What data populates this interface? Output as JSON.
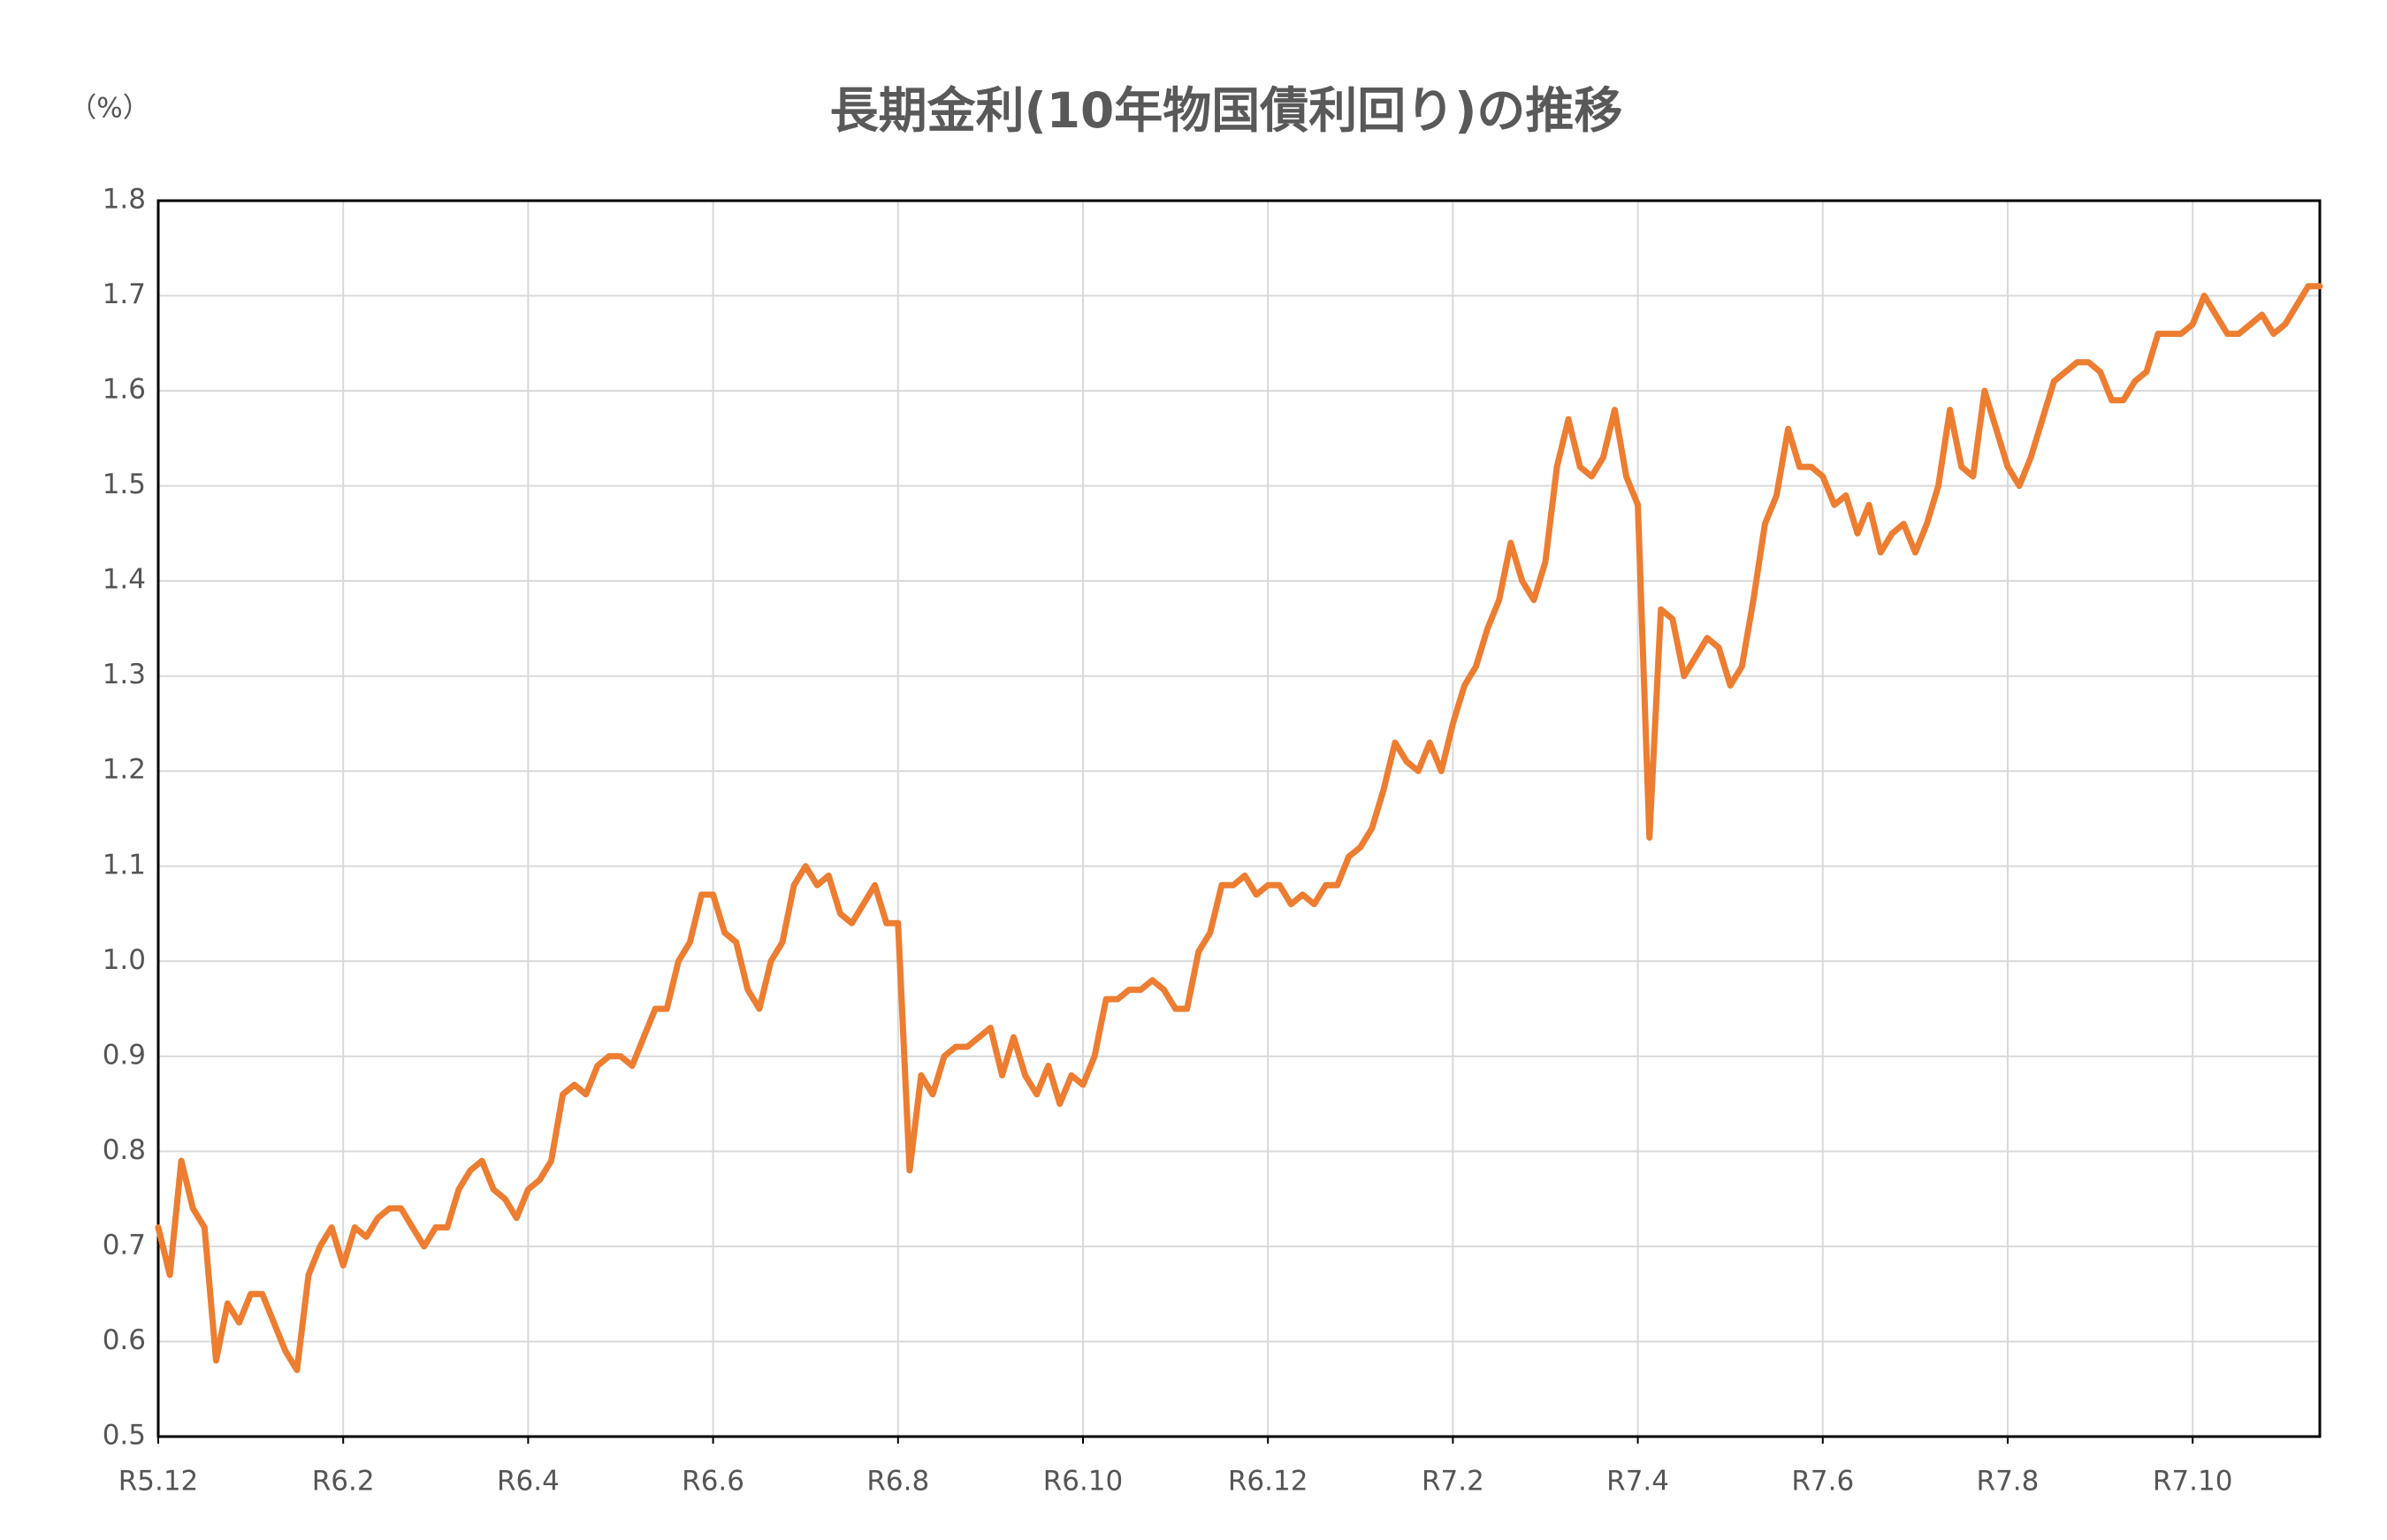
{
  "chart_data": {
    "type": "line",
    "title": "長期金利(10年物国債利回り)の推移",
    "y_label": "（%）",
    "categories": [
      "R5.12",
      null,
      null,
      null,
      null,
      null,
      null,
      null,
      null,
      null,
      null,
      null,
      null,
      null,
      null,
      null,
      "R6.2",
      null,
      null,
      null,
      null,
      null,
      null,
      null,
      null,
      null,
      null,
      null,
      null,
      null,
      null,
      null,
      "R6.4",
      null,
      null,
      null,
      null,
      null,
      null,
      null,
      null,
      null,
      null,
      null,
      null,
      null,
      null,
      null,
      "R6.6",
      null,
      null,
      null,
      null,
      null,
      null,
      null,
      null,
      null,
      null,
      null,
      null,
      null,
      null,
      null,
      "R6.8",
      null,
      null,
      null,
      null,
      null,
      null,
      null,
      null,
      null,
      null,
      null,
      null,
      null,
      null,
      null,
      "R6.10",
      null,
      null,
      null,
      null,
      null,
      null,
      null,
      null,
      null,
      null,
      null,
      null,
      null,
      null,
      null,
      "R6.12",
      null,
      null,
      null,
      null,
      null,
      null,
      null,
      null,
      null,
      null,
      null,
      null,
      null,
      null,
      null,
      "R7.2",
      null,
      null,
      null,
      null,
      null,
      null,
      null,
      null,
      null,
      null,
      null,
      null,
      null,
      null,
      null,
      "R7.4",
      null,
      null,
      null,
      null,
      null,
      null,
      null,
      null,
      null,
      null,
      null,
      null,
      null,
      null,
      null,
      "R7.6",
      null,
      null,
      null,
      null,
      null,
      null,
      null,
      null,
      null,
      null,
      null,
      null,
      null,
      null,
      null,
      "R7.8",
      null,
      null,
      null,
      null,
      null,
      null,
      null,
      null,
      null,
      null,
      null,
      null,
      null,
      null,
      null,
      "R7.10",
      null,
      null,
      null,
      null,
      null,
      null,
      null,
      null,
      null,
      null,
      null
    ],
    "series": [
      {
        "color": "#ED7D31",
        "values": [
          0.72,
          0.67,
          0.79,
          0.74,
          0.72,
          0.58,
          0.64,
          0.62,
          0.65,
          0.65,
          0.62,
          0.59,
          0.57,
          0.67,
          0.7,
          0.72,
          0.68,
          0.72,
          0.71,
          0.73,
          0.74,
          0.74,
          0.72,
          0.7,
          0.72,
          0.72,
          0.76,
          0.78,
          0.79,
          0.76,
          0.75,
          0.73,
          0.76,
          0.77,
          0.79,
          0.86,
          0.87,
          0.86,
          0.89,
          0.9,
          0.9,
          0.89,
          0.92,
          0.95,
          0.95,
          1.0,
          1.02,
          1.07,
          1.07,
          1.03,
          1.02,
          0.97,
          0.95,
          1.0,
          1.02,
          1.08,
          1.1,
          1.08,
          1.09,
          1.05,
          1.04,
          1.06,
          1.08,
          1.04,
          1.04,
          0.78,
          0.88,
          0.86,
          0.9,
          0.91,
          0.91,
          0.92,
          0.93,
          0.88,
          0.92,
          0.88,
          0.86,
          0.89,
          0.85,
          0.88,
          0.87,
          0.9,
          0.96,
          0.96,
          0.97,
          0.97,
          0.98,
          0.97,
          0.95,
          0.95,
          1.01,
          1.03,
          1.08,
          1.08,
          1.09,
          1.07,
          1.08,
          1.08,
          1.06,
          1.07,
          1.06,
          1.08,
          1.08,
          1.11,
          1.12,
          1.14,
          1.18,
          1.23,
          1.21,
          1.2,
          1.23,
          1.2,
          1.25,
          1.29,
          1.31,
          1.35,
          1.38,
          1.44,
          1.4,
          1.38,
          1.42,
          1.52,
          1.57,
          1.52,
          1.51,
          1.53,
          1.58,
          1.51,
          1.48,
          1.13,
          1.37,
          1.36,
          1.3,
          1.32,
          1.34,
          1.33,
          1.29,
          1.31,
          1.38,
          1.46,
          1.49,
          1.56,
          1.52,
          1.52,
          1.51,
          1.48,
          1.49,
          1.45,
          1.48,
          1.43,
          1.45,
          1.46,
          1.43,
          1.46,
          1.5,
          1.58,
          1.52,
          1.51,
          1.6,
          1.56,
          1.52,
          1.5,
          1.53,
          1.57,
          1.61,
          1.62,
          1.63,
          1.63,
          1.62,
          1.59,
          1.59,
          1.61,
          1.62,
          1.66,
          1.66,
          1.66,
          1.67,
          1.7,
          1.68,
          1.66,
          1.66,
          1.67,
          1.68,
          1.66,
          1.67,
          1.69,
          1.71,
          1.71
        ]
      }
    ],
    "ylim": [
      0.5,
      1.8
    ],
    "yticks": [
      0.5,
      0.6,
      0.7,
      0.8,
      0.9,
      {
        "value": 1,
        "label": "1.0"
      },
      1.1,
      1.2,
      1.3,
      1.4,
      1.5,
      1.6,
      1.7,
      1.8
    ],
    "grid": true
  }
}
